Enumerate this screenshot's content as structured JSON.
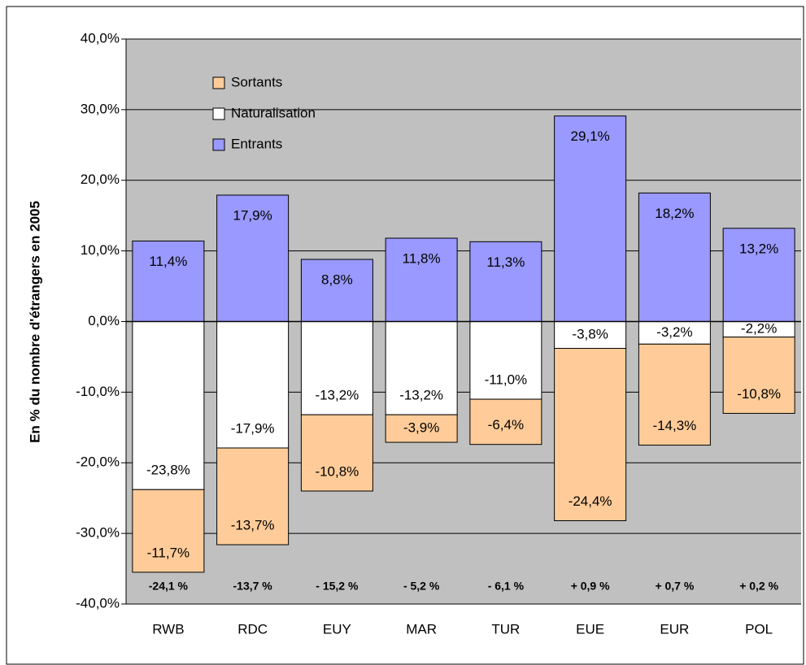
{
  "chart_data": {
    "type": "bar",
    "stacked": true,
    "y_label": "En % du nombre d'étrangers en 2005",
    "categories": [
      "RWB",
      "RDC",
      "EUY",
      "MAR",
      "TUR",
      "EUE",
      "EUR",
      "POL"
    ],
    "series": [
      {
        "name": "Sortants",
        "color": "#ffcc99",
        "values": [
          -11.7,
          -13.7,
          -10.8,
          -3.9,
          -6.4,
          -24.4,
          -14.3,
          -10.8
        ],
        "value_labels": [
          "-11,7%",
          "-13,7%",
          "-10,8%",
          "-3,9%",
          "-6,4%",
          "-24,4%",
          "-14,3%",
          "-10,8%"
        ]
      },
      {
        "name": "Naturalisation",
        "color": "#ffffff",
        "values": [
          -23.8,
          -17.9,
          -13.2,
          -13.2,
          -11.0,
          -3.8,
          -3.2,
          -2.2
        ],
        "value_labels": [
          "-23,8%",
          "-17,9%",
          "-13,2%",
          "-13,2%",
          "-11,0%",
          "-3,8%",
          "-3,2%",
          "-2,2%"
        ]
      },
      {
        "name": "Entrants",
        "color": "#9999ff",
        "values": [
          11.4,
          17.9,
          8.8,
          11.8,
          11.3,
          29.1,
          18.2,
          13.2
        ],
        "value_labels": [
          "11,4%",
          "17,9%",
          "8,8%",
          "11,8%",
          "11,3%",
          "29,1%",
          "18,2%",
          "13,2%"
        ]
      }
    ],
    "annotations": [
      "-24,1 %",
      "-13,7 %",
      "- 15,2 %",
      "- 5,2 %",
      "- 6,1 %",
      "+ 0,9 %",
      "+ 0,7 %",
      "+ 0,2 %"
    ],
    "ylim": [
      -40,
      40
    ],
    "yticks": [
      {
        "value": -40,
        "label": "-40,0%"
      },
      {
        "value": -30,
        "label": "-30,0%"
      },
      {
        "value": -20,
        "label": "-20,0%"
      },
      {
        "value": -10,
        "label": "-10,0%"
      },
      {
        "value": 0,
        "label": "0,0%"
      },
      {
        "value": 10,
        "label": "10,0%"
      },
      {
        "value": 20,
        "label": "20,0%"
      },
      {
        "value": 30,
        "label": "30,0%"
      },
      {
        "value": 40,
        "label": "40,0%"
      }
    ],
    "grid": true,
    "legend": "upper left",
    "plot_background": "#c0c0c0"
  }
}
